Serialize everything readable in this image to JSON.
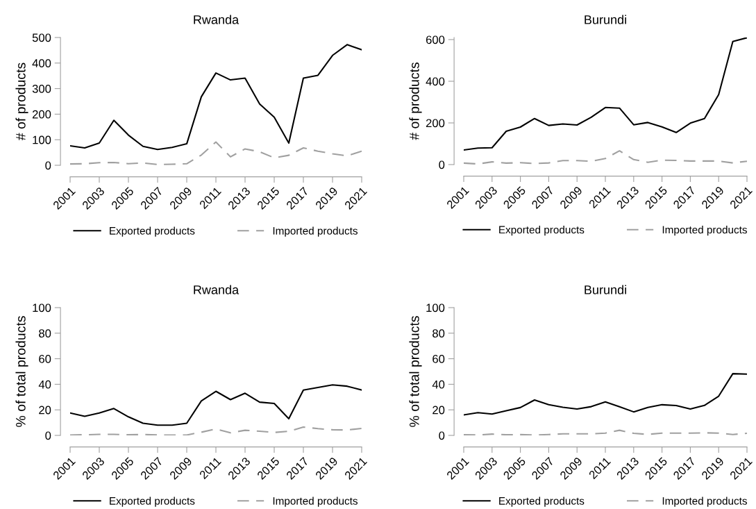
{
  "chart_data": [
    {
      "type": "line",
      "title": "Rwanda",
      "ylabel": "# of products",
      "x": [
        2001,
        2002,
        2003,
        2004,
        2005,
        2006,
        2007,
        2008,
        2009,
        2010,
        2011,
        2012,
        2013,
        2014,
        2015,
        2016,
        2017,
        2018,
        2019,
        2020,
        2021
      ],
      "xlim": [
        2001,
        2021
      ],
      "xticks": [
        2001,
        2003,
        2005,
        2007,
        2009,
        2011,
        2013,
        2015,
        2017,
        2019,
        2021
      ],
      "ylim": [
        0,
        500
      ],
      "yticks": [
        0,
        100,
        200,
        300,
        400,
        500
      ],
      "grid": false,
      "legend": "bottom",
      "marker": "none",
      "series": [
        {
          "name": "Exported products",
          "color": "#000000",
          "line_style": "solid",
          "values": [
            76,
            68,
            87,
            176,
            118,
            74,
            62,
            70,
            84,
            268,
            361,
            334,
            341,
            240,
            188,
            87,
            341,
            352,
            430,
            472,
            452
          ]
        },
        {
          "name": "Imported products",
          "color": "#a0a0a0",
          "line_style": "dashed",
          "values": [
            5,
            6,
            10,
            11,
            6,
            9,
            3,
            4,
            6,
            40,
            91,
            33,
            64,
            53,
            29,
            39,
            68,
            55,
            45,
            37,
            55
          ]
        }
      ]
    },
    {
      "type": "line",
      "title": "Burundi",
      "ylabel": "# of products",
      "x": [
        2001,
        2002,
        2003,
        2004,
        2005,
        2006,
        2007,
        2008,
        2009,
        2010,
        2011,
        2012,
        2013,
        2014,
        2015,
        2016,
        2017,
        2018,
        2019,
        2020,
        2021
      ],
      "xlim": [
        2001,
        2021
      ],
      "xticks": [
        2001,
        2003,
        2005,
        2007,
        2009,
        2011,
        2013,
        2015,
        2017,
        2019,
        2021
      ],
      "ylim": [
        0,
        610
      ],
      "yticks": [
        0,
        200,
        400,
        600
      ],
      "grid": false,
      "legend": "bottom",
      "marker": "none",
      "series": [
        {
          "name": "Exported products",
          "color": "#000000",
          "line_style": "solid",
          "values": [
            70,
            79,
            81,
            160,
            180,
            221,
            188,
            195,
            190,
            227,
            274,
            271,
            191,
            202,
            181,
            154,
            199,
            221,
            336,
            591,
            609
          ]
        },
        {
          "name": "Imported products",
          "color": "#a0a0a0",
          "line_style": "dashed",
          "values": [
            7,
            3,
            13,
            7,
            9,
            5,
            8,
            19,
            19,
            16,
            29,
            66,
            24,
            11,
            21,
            20,
            17,
            17,
            17,
            8,
            16
          ]
        }
      ]
    },
    {
      "type": "line",
      "title": "Rwanda",
      "ylabel": "% of total products",
      "x": [
        2001,
        2002,
        2003,
        2004,
        2005,
        2006,
        2007,
        2008,
        2009,
        2010,
        2011,
        2012,
        2013,
        2014,
        2015,
        2016,
        2017,
        2018,
        2019,
        2020,
        2021
      ],
      "xlim": [
        2001,
        2021
      ],
      "xticks": [
        2001,
        2003,
        2005,
        2007,
        2009,
        2011,
        2013,
        2015,
        2017,
        2019,
        2021
      ],
      "ylim": [
        0,
        100
      ],
      "yticks": [
        0,
        20,
        40,
        60,
        80,
        100
      ],
      "grid": false,
      "legend": "bottom",
      "marker": "none",
      "series": [
        {
          "name": "Exported products",
          "color": "#000000",
          "line_style": "solid",
          "values": [
            17.5,
            15,
            17.5,
            21,
            14.5,
            9.5,
            8,
            8,
            9.5,
            27,
            34.5,
            28,
            33,
            26,
            25,
            13,
            35.5,
            37.5,
            39.5,
            38.5,
            35.5
          ]
        },
        {
          "name": "Imported products",
          "color": "#a0a0a0",
          "line_style": "dashed",
          "values": [
            0.3,
            0.5,
            0.8,
            0.8,
            0.5,
            0.7,
            0.3,
            0.3,
            0.3,
            2.5,
            5,
            2,
            4,
            3.3,
            2.3,
            3.2,
            6.5,
            5.3,
            4.4,
            4.2,
            5.5
          ]
        }
      ]
    },
    {
      "type": "line",
      "title": "Burundi",
      "ylabel": "% of total products",
      "x": [
        2001,
        2002,
        2003,
        2004,
        2005,
        2006,
        2007,
        2008,
        2009,
        2010,
        2011,
        2012,
        2013,
        2014,
        2015,
        2016,
        2017,
        2018,
        2019,
        2020,
        2021
      ],
      "xlim": [
        2001,
        2021
      ],
      "xticks": [
        2001,
        2003,
        2005,
        2007,
        2009,
        2011,
        2013,
        2015,
        2017,
        2019,
        2021
      ],
      "ylim": [
        0,
        100
      ],
      "yticks": [
        0,
        20,
        40,
        60,
        80,
        100
      ],
      "grid": false,
      "legend": "bottom",
      "marker": "none",
      "series": [
        {
          "name": "Exported products",
          "color": "#000000",
          "line_style": "solid",
          "values": [
            16,
            17.8,
            16.7,
            19.3,
            21.8,
            27.7,
            24,
            22,
            20.7,
            22.5,
            26.2,
            22.4,
            18.4,
            21.9,
            24,
            23.4,
            20.7,
            23.5,
            30.7,
            48.3,
            48
          ]
        },
        {
          "name": "Imported products",
          "color": "#a0a0a0",
          "line_style": "dashed",
          "values": [
            0.5,
            0.3,
            1,
            0.5,
            0.6,
            0.3,
            0.7,
            1.2,
            1.2,
            1.2,
            1.8,
            4,
            1.6,
            0.8,
            1.8,
            1.8,
            1.8,
            2,
            1.8,
            0.7,
            1.6
          ]
        }
      ]
    }
  ]
}
